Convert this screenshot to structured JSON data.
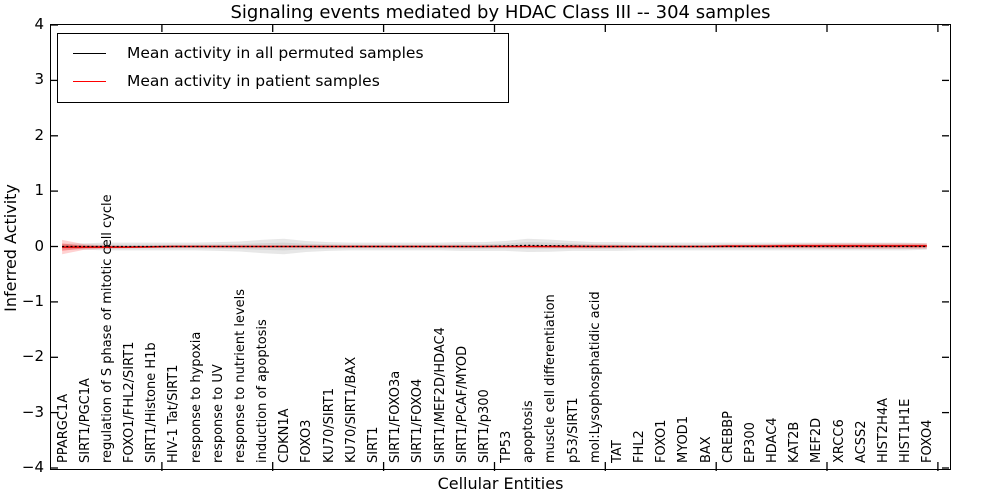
{
  "figure": {
    "title": "Signaling events mediated by HDAC Class III -- 304 samples"
  },
  "legend": {
    "items": [
      {
        "label": "Mean activity in all permuted samples",
        "color": "#000000"
      },
      {
        "label": "Mean activity in patient samples",
        "color": "#ff0000"
      }
    ]
  },
  "chart_data": {
    "type": "line",
    "title": "Signaling events mediated by HDAC Class III -- 304 samples",
    "xlabel": "Cellular Entities",
    "ylabel": "Inferred Activity",
    "ylim": [
      -4,
      4
    ],
    "ytick_labels": [
      "4",
      "3",
      "2",
      "1",
      "0",
      "−1",
      "−2",
      "−3",
      "−4"
    ],
    "ytick_values": [
      4,
      3,
      2,
      1,
      0,
      -1,
      -2,
      -3,
      -4
    ],
    "x_major_tick_positions": [
      5,
      10,
      15,
      20,
      25,
      30,
      35,
      40
    ],
    "grid": false,
    "legend_position": "upper left",
    "categories": [
      "PPARGC1A",
      "SIRT1/PGC1A",
      "regulation of S phase of mitotic cell cycle",
      "FOXO1/FHL2/SIRT1",
      "SIRT1/Histone H1b",
      "HIV-1 Tat/SIRT1",
      "response to hypoxia",
      "response to UV",
      "response to nutrient levels",
      "induction of apoptosis",
      "CDKN1A",
      "FOXO3",
      "KU70/SIRT1",
      "KU70/SIRT1/BAX",
      "SIRT1",
      "SIRT1/FOXO3a",
      "SIRT1/FOXO4",
      "SIRT1/MEF2D/HDAC4",
      "SIRT1/PCAF/MYOD",
      "SIRT1/p300",
      "TP53",
      "apoptosis",
      "muscle cell differentiation",
      "p53/SIRT1",
      "mol:Lysophosphatidic acid",
      "TAT",
      "FHL2",
      "FOXO1",
      "MYOD1",
      "BAX",
      "CREBBP",
      "EP300",
      "HDAC4",
      "KAT2B",
      "MEF2D",
      "XRCC6",
      "ACSS2",
      "HIST2H4A",
      "HIST1H1E",
      "FOXO4"
    ],
    "series": [
      {
        "name": "Mean activity in all permuted samples",
        "color": "#000000",
        "line_style": "dotted",
        "band_color": "#aaaaaa",
        "values": [
          0,
          0,
          0,
          0,
          0,
          0,
          0,
          0,
          0,
          0,
          0,
          0,
          0,
          0,
          0,
          0,
          0,
          0,
          0,
          0,
          0.01,
          0.02,
          0.015,
          0.01,
          0,
          0,
          0,
          0,
          0,
          0,
          0,
          0,
          0,
          0,
          0,
          0,
          0,
          0,
          0,
          0
        ],
        "band_halfwidth": [
          0.05,
          0.06,
          0.07,
          0.07,
          0.07,
          0.07,
          0.07,
          0.08,
          0.09,
          0.12,
          0.14,
          0.1,
          0.08,
          0.07,
          0.07,
          0.07,
          0.07,
          0.07,
          0.08,
          0.08,
          0.09,
          0.12,
          0.11,
          0.09,
          0.08,
          0.08,
          0.07,
          0.07,
          0.07,
          0.07,
          0.07,
          0.07,
          0.07,
          0.07,
          0.07,
          0.07,
          0.07,
          0.07,
          0.07,
          0.06
        ]
      },
      {
        "name": "Mean activity in patient samples",
        "color": "#ff0000",
        "line_style": "solid",
        "band_color": "#ff0000",
        "values": [
          -0.01,
          -0.01,
          -0.01,
          -0.01,
          -0.005,
          0,
          0,
          0,
          0,
          0,
          0,
          0,
          0,
          0,
          0,
          0,
          0,
          0,
          0,
          0,
          0,
          0,
          0,
          0,
          0,
          0,
          0,
          0,
          0,
          0,
          0.005,
          0.005,
          0.005,
          0.01,
          0.01,
          0.01,
          0.01,
          0.01,
          0.01,
          0.01
        ],
        "band_halfwidth": [
          0.13,
          0.05,
          0.03,
          0.02,
          0.02,
          0.02,
          0.02,
          0.02,
          0.02,
          0.02,
          0.02,
          0.02,
          0.02,
          0.02,
          0.02,
          0.02,
          0.02,
          0.02,
          0.02,
          0.02,
          0.02,
          0.02,
          0.025,
          0.03,
          0.03,
          0.025,
          0.02,
          0.02,
          0.02,
          0.02,
          0.03,
          0.03,
          0.035,
          0.04,
          0.045,
          0.05,
          0.05,
          0.05,
          0.05,
          0.05
        ]
      }
    ]
  }
}
